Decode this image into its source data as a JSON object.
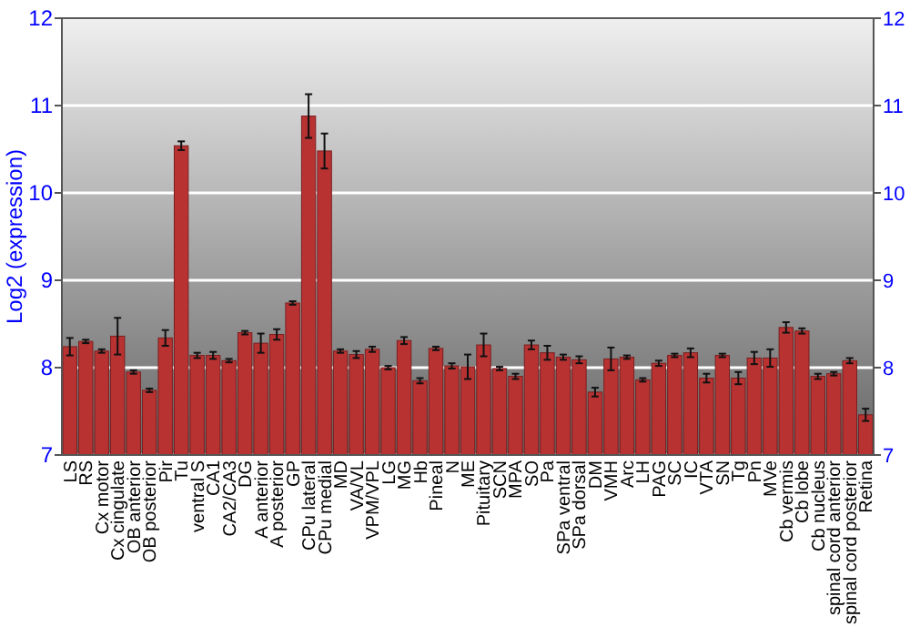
{
  "chart_data": {
    "type": "bar",
    "ylabel": "Log2 (expression)",
    "categories": [
      "LS",
      "RS",
      "Cx motor",
      "Cx cingulate",
      "OB anterior",
      "OB posterior",
      "Pir",
      "Tu",
      "ventral S",
      "CA1",
      "CA2/CA3",
      "DG",
      "A anterior",
      "A posterior",
      "GP",
      "CPu lateral",
      "CPu medial",
      "MD",
      "VA/VL",
      "VPM/VPL",
      "LG",
      "MG",
      "Hb",
      "Pineal",
      "N",
      "ME",
      "Pituitary",
      "SCN",
      "MPA",
      "SO",
      "Pa",
      "SPa ventral",
      "SPa dorsal",
      "DM",
      "VMH",
      "Arc",
      "LH",
      "PAG",
      "SC",
      "IC",
      "VTA",
      "SN",
      "Tg",
      "Pn",
      "MVe",
      "Cb vermis",
      "Cb lobe",
      "Cb nucleus",
      "spinal cord anterior",
      "spinal cord posterior",
      "Retina"
    ],
    "values": [
      8.24,
      8.3,
      8.19,
      8.36,
      7.95,
      7.74,
      8.34,
      10.54,
      8.14,
      8.14,
      8.08,
      8.4,
      8.28,
      8.38,
      8.74,
      10.88,
      10.48,
      8.19,
      8.15,
      8.21,
      8.0,
      8.31,
      7.85,
      8.22,
      8.02,
      8.01,
      8.26,
      7.99,
      7.9,
      8.26,
      8.17,
      8.12,
      8.09,
      7.72,
      8.1,
      8.12,
      7.86,
      8.05,
      8.14,
      8.17,
      7.88,
      8.14,
      7.88,
      8.11,
      8.11,
      8.46,
      8.42,
      7.9,
      7.93,
      8.08,
      7.46
    ],
    "errors": [
      0.1,
      0.02,
      0.02,
      0.21,
      0.02,
      0.02,
      0.09,
      0.05,
      0.03,
      0.04,
      0.02,
      0.02,
      0.11,
      0.06,
      0.02,
      0.25,
      0.2,
      0.02,
      0.04,
      0.03,
      0.02,
      0.04,
      0.03,
      0.02,
      0.03,
      0.14,
      0.13,
      0.02,
      0.03,
      0.05,
      0.08,
      0.03,
      0.04,
      0.05,
      0.13,
      0.02,
      0.02,
      0.03,
      0.02,
      0.05,
      0.05,
      0.02,
      0.07,
      0.07,
      0.1,
      0.06,
      0.03,
      0.03,
      0.02,
      0.03,
      0.07
    ],
    "color": "#b83232",
    "ylim": [
      7,
      12
    ],
    "yticks": [
      7,
      8,
      9,
      10,
      11,
      12
    ],
    "y2lim": [
      7,
      12
    ],
    "y2ticks": [
      7,
      8,
      9,
      10,
      11,
      12
    ],
    "grid": "y"
  }
}
